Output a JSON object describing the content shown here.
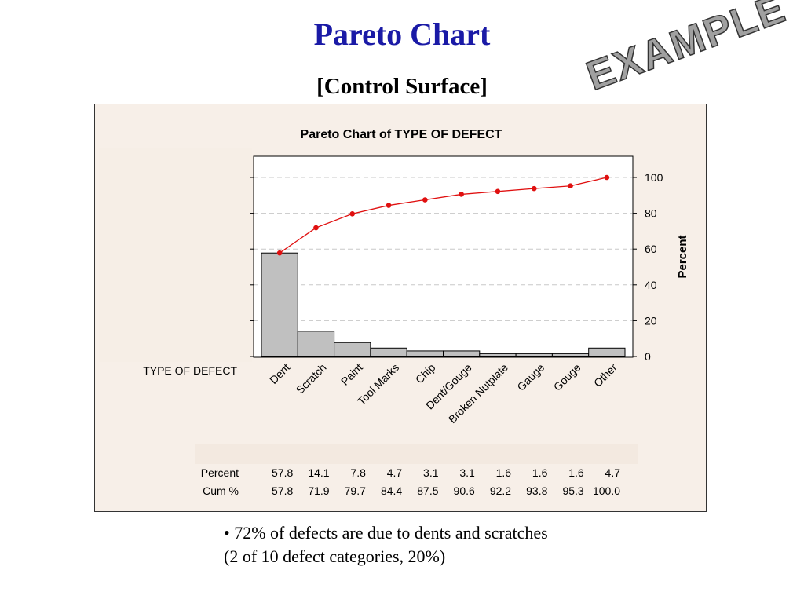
{
  "slide": {
    "title": "Pareto Chart",
    "subtitle": "[Control Surface]",
    "watermark": "EXAMPLE",
    "bullet_line1": "• 72% of defects are due to dents and scratches",
    "bullet_line2": "(2 of 10 defect categories, 20%)"
  },
  "colors": {
    "title": "#1a1aa6",
    "bar_fill": "#c0c0c0",
    "line": "#e01010",
    "panel": "#f7efe8",
    "watermark_fill": "#a0a0a0"
  },
  "chart_data": {
    "type": "bar",
    "title": "Pareto Chart of TYPE OF DEFECT",
    "xlabel": "TYPE OF DEFECT",
    "ylabel": "Percent",
    "ylim": [
      0,
      100
    ],
    "yticks": [
      0,
      20,
      40,
      60,
      80,
      100
    ],
    "grid": true,
    "categories": [
      "Dent",
      "Scratch",
      "Paint",
      "Tool Marks",
      "Chip",
      "Dent/Gouge",
      "Broken Nutplate",
      "Gauge",
      "Gouge",
      "Other"
    ],
    "series": [
      {
        "name": "Percent",
        "values": [
          57.8,
          14.1,
          7.8,
          4.7,
          3.1,
          3.1,
          1.6,
          1.6,
          1.6,
          4.7
        ]
      },
      {
        "name": "Cum %",
        "values": [
          57.8,
          71.9,
          79.7,
          84.4,
          87.5,
          90.6,
          92.2,
          93.8,
          95.3,
          100.0
        ]
      }
    ],
    "table_rows": [
      {
        "label": "Percent",
        "values": [
          "57.8",
          "14.1",
          "7.8",
          "4.7",
          "3.1",
          "3.1",
          "1.6",
          "1.6",
          "1.6",
          "4.7"
        ]
      },
      {
        "label": "Cum %",
        "values": [
          "57.8",
          "71.9",
          "79.7",
          "84.4",
          "87.5",
          "90.6",
          "92.2",
          "93.8",
          "95.3",
          "100.0"
        ]
      }
    ]
  }
}
